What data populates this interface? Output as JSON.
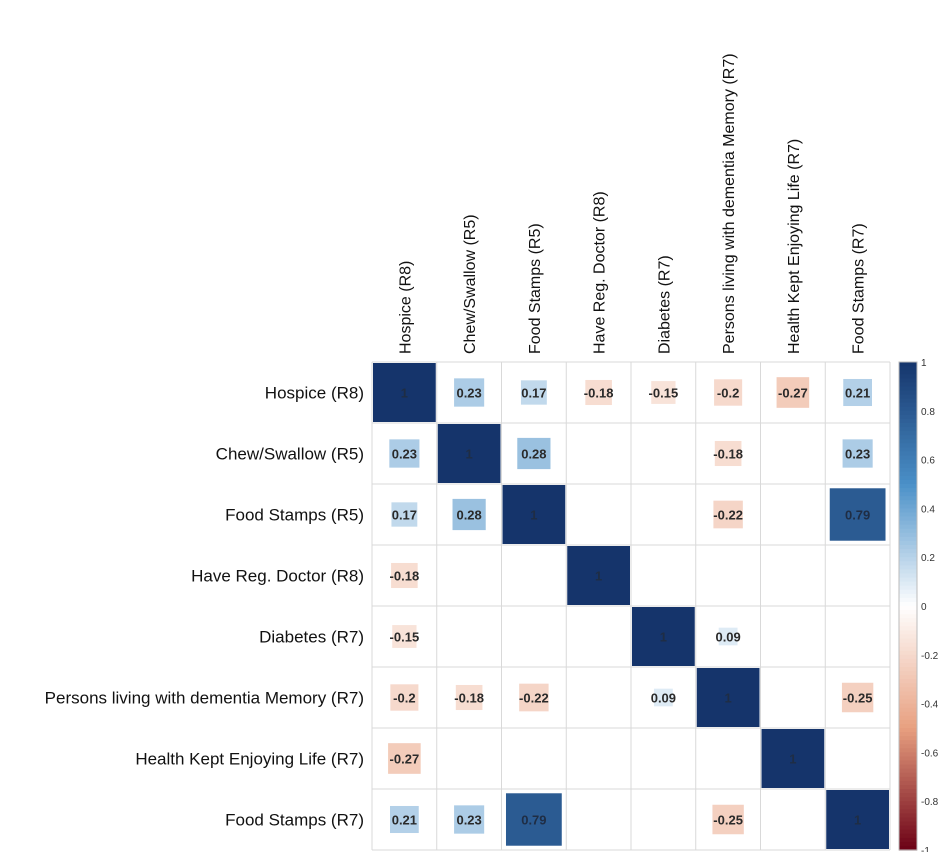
{
  "chart_data": {
    "type": "heatmap",
    "row_labels": [
      "Hospice (R8)",
      "Chew/Swallow (R5)",
      "Food Stamps (R5)",
      "Have Reg. Doctor (R8)",
      "Diabetes (R7)",
      "Persons living with dementia Memory (R7)",
      "Health Kept Enjoying Life (R7)",
      "Food Stamps (R7)"
    ],
    "col_labels": [
      "Hospice (R8)",
      "Chew/Swallow (R5)",
      "Food Stamps (R5)",
      "Have Reg. Doctor (R8)",
      "Diabetes (R7)",
      "Persons living with dementia Memory (R7)",
      "Health Kept Enjoying Life (R7)",
      "Food Stamps (R7)"
    ],
    "matrix": [
      [
        1,
        0.23,
        0.17,
        -0.18,
        -0.15,
        -0.2,
        -0.27,
        0.21
      ],
      [
        0.23,
        1,
        0.28,
        null,
        null,
        -0.18,
        null,
        0.23
      ],
      [
        0.17,
        0.28,
        1,
        null,
        null,
        -0.22,
        null,
        0.79
      ],
      [
        -0.18,
        null,
        null,
        1,
        null,
        null,
        null,
        null
      ],
      [
        -0.15,
        null,
        null,
        null,
        1,
        0.09,
        null,
        null
      ],
      [
        -0.2,
        -0.18,
        -0.22,
        null,
        0.09,
        1,
        null,
        -0.25
      ],
      [
        -0.27,
        null,
        null,
        null,
        null,
        null,
        1,
        null
      ],
      [
        0.21,
        0.23,
        0.79,
        null,
        null,
        -0.25,
        null,
        1
      ]
    ],
    "cell_labels": [
      [
        "1",
        "0.23",
        "0.17",
        "-0.18",
        "-0.15",
        "-0.2",
        "-0.27",
        "0.21"
      ],
      [
        "0.23",
        "1",
        "0.28",
        "",
        "",
        "-0.18",
        "",
        "0.23"
      ],
      [
        "0.17",
        "0.28",
        "1",
        "",
        "",
        "-0.22",
        "",
        "0.79"
      ],
      [
        "-0.18",
        "",
        "",
        "1",
        "",
        "",
        "",
        ""
      ],
      [
        "-0.15",
        "",
        "",
        "",
        "1",
        "0.09",
        "",
        ""
      ],
      [
        "-0.2",
        "-0.18",
        "-0.22",
        "",
        "0.09",
        "1",
        "",
        "-0.25"
      ],
      [
        "-0.27",
        "",
        "",
        "",
        "",
        "",
        "1",
        ""
      ],
      [
        "0.21",
        "0.23",
        "0.79",
        "",
        "",
        "-0.25",
        "",
        "1"
      ]
    ],
    "color_range": [
      -1,
      1
    ],
    "legend": {
      "position": "right",
      "ticks": [
        "1",
        "0.8",
        "0.6",
        "0.4",
        "0.2",
        "0",
        "-0.2",
        "-0.4",
        "-0.6",
        "-0.8",
        "-1"
      ]
    },
    "colors": {
      "positive_strong": "#15346b",
      "positive_mid": "#4a90c8",
      "neutral": "#ffffff",
      "negative_mid": "#e8a080",
      "negative_strong": "#6b0015",
      "grid": "#d9d9d9"
    }
  }
}
